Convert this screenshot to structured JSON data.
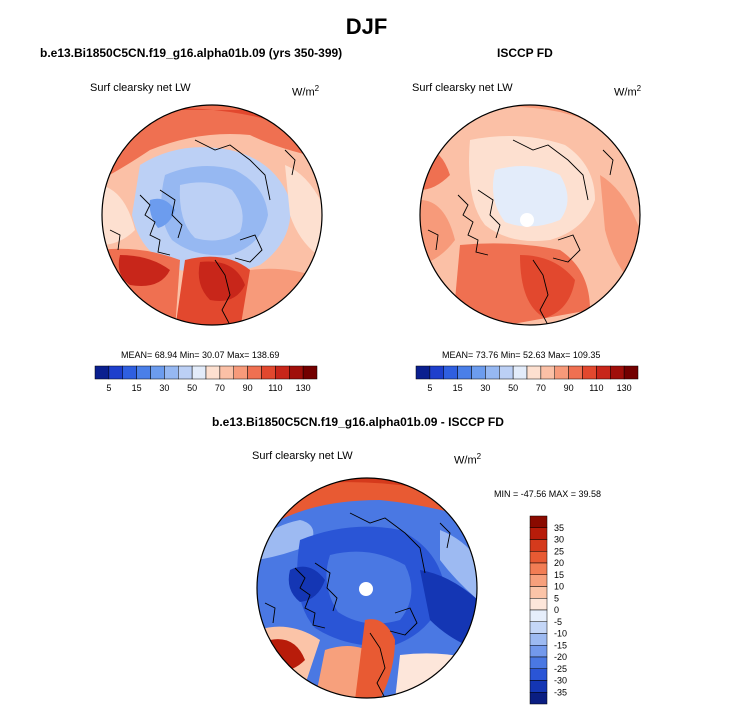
{
  "page_title": "DJF",
  "panels": {
    "model": {
      "title": "b.e13.Bi1850C5CN.f19_g16.alpha01b.09 (yrs 350-399)",
      "variable": "Surf clearsky net LW",
      "units": "W/m",
      "units_exp": "2",
      "stats": "MEAN=  68.94  Min=  30.07  Max= 138.69"
    },
    "obs": {
      "title": "ISCCP FD",
      "variable": "Surf clearsky net LW",
      "units": "W/m",
      "units_exp": "2",
      "stats": "MEAN=  73.76  Min=  52.63  Max= 109.35"
    },
    "diff": {
      "title": "b.e13.Bi1850C5CN.f19_g16.alpha01b.09 - ISCCP FD",
      "variable": "Surf clearsky net LW",
      "units": "W/m",
      "units_exp": "2",
      "stats": "MIN = -47.56 MAX =  39.58"
    }
  },
  "chart_data": [
    {
      "type": "heatmap",
      "projection": "polar-stereographic-north",
      "title": "b.e13.Bi1850C5CN.f19_g16.alpha01b.09 (yrs 350-399)",
      "variable": "Surf clearsky net LW",
      "units": "W/m2",
      "mean": 68.94,
      "min": 30.07,
      "max": 138.69,
      "colorbar_levels": [
        5,
        10,
        15,
        20,
        30,
        40,
        50,
        60,
        70,
        80,
        90,
        100,
        110,
        120,
        130
      ],
      "colorbar_labels": [
        "5",
        "15",
        "30",
        "50",
        "70",
        "90",
        "110",
        "130"
      ],
      "colorbar_colors": [
        "#0a1f8f",
        "#1e3fcc",
        "#2f5fe0",
        "#4a7fe8",
        "#6c9cee",
        "#96b8f2",
        "#bcd0f5",
        "#e3ecfa",
        "#fde0d0",
        "#fbc0a6",
        "#f79a7a",
        "#ef7051",
        "#e2482e",
        "#c8261a",
        "#a00f0a",
        "#730000"
      ]
    },
    {
      "type": "heatmap",
      "projection": "polar-stereographic-north",
      "title": "ISCCP FD",
      "variable": "Surf clearsky net LW",
      "units": "W/m2",
      "mean": 73.76,
      "min": 52.63,
      "max": 109.35,
      "colorbar_levels": [
        5,
        10,
        15,
        20,
        30,
        40,
        50,
        60,
        70,
        80,
        90,
        100,
        110,
        120,
        130
      ],
      "colorbar_labels": [
        "5",
        "15",
        "30",
        "50",
        "70",
        "90",
        "110",
        "130"
      ],
      "colorbar_colors": [
        "#0a1f8f",
        "#1e3fcc",
        "#2f5fe0",
        "#4a7fe8",
        "#6c9cee",
        "#96b8f2",
        "#bcd0f5",
        "#e3ecfa",
        "#fde0d0",
        "#fbc0a6",
        "#f79a7a",
        "#ef7051",
        "#e2482e",
        "#c8261a",
        "#a00f0a",
        "#730000"
      ]
    },
    {
      "type": "heatmap",
      "projection": "polar-stereographic-north",
      "title": "b.e13.Bi1850C5CN.f19_g16.alpha01b.09 - ISCCP FD",
      "variable": "Surf clearsky net LW",
      "units": "W/m2",
      "min": -47.56,
      "max": 39.58,
      "colorbar_levels": [
        35,
        30,
        25,
        20,
        15,
        10,
        5,
        0,
        -5,
        -10,
        -15,
        -20,
        -25,
        -30,
        -35
      ],
      "colorbar_labels": [
        "35",
        "30",
        "25",
        "20",
        "15",
        "10",
        "5",
        "0",
        "-5",
        "-10",
        "-15",
        "-20",
        "-25",
        "-30",
        "-35"
      ],
      "colorbar_colors": [
        "#8a0a00",
        "#b81c0a",
        "#d53a1c",
        "#e85a33",
        "#f27d54",
        "#f7a07c",
        "#fbc4a8",
        "#fde6da",
        "#e6eefb",
        "#c4d6f7",
        "#9dbaf2",
        "#7399ec",
        "#4a78e3",
        "#2a55d6",
        "#1436b4",
        "#0a1e82"
      ]
    }
  ]
}
